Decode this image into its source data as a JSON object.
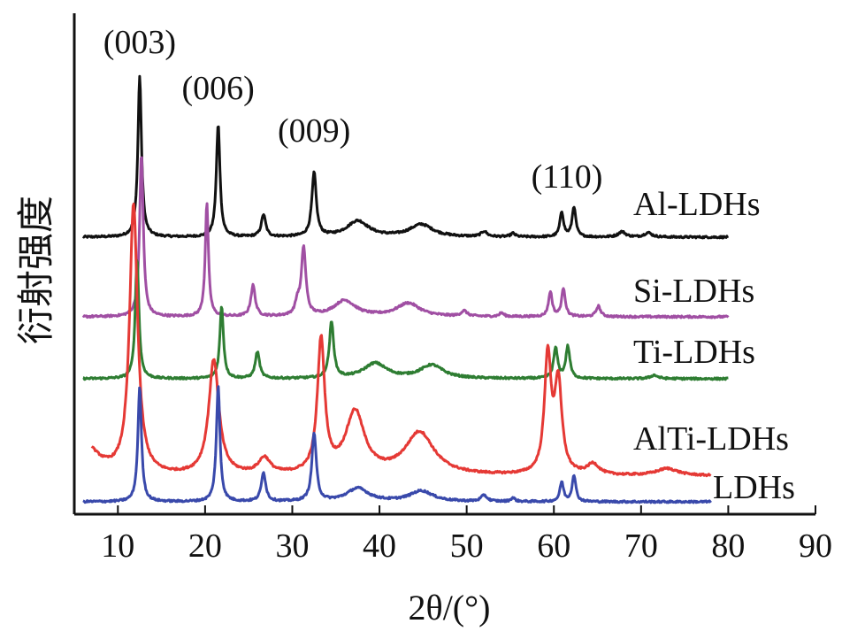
{
  "chart_data": {
    "type": "line",
    "xlabel": "2θ/(°)",
    "ylabel": "衍射强度",
    "xlim": [
      5,
      90
    ],
    "xticks": [
      10,
      20,
      30,
      40,
      50,
      60,
      70,
      80,
      90
    ],
    "y_ticks_shown": false,
    "grid": false,
    "legend": "inline labels at right end of each curve",
    "annotations": [
      {
        "text": "(003)",
        "x": 12.5
      },
      {
        "text": "(006)",
        "x": 21.5
      },
      {
        "text": "(009)",
        "x": 32.5
      },
      {
        "text": "(110)",
        "x": 61.5
      }
    ],
    "series": [
      {
        "name": "Al-LDHs",
        "color": "#111111",
        "baseline": 268,
        "x_range": [
          6,
          80
        ],
        "peaks": [
          {
            "x": 12.5,
            "height": 182,
            "width": 0.25
          },
          {
            "x": 21.5,
            "height": 127,
            "width": 0.25
          },
          {
            "x": 26.7,
            "height": 25,
            "width": 0.3
          },
          {
            "x": 32.5,
            "height": 72,
            "width": 0.3
          },
          {
            "x": 37.5,
            "height": 18,
            "width": 1.5
          },
          {
            "x": 44.8,
            "height": 14,
            "width": 1.6
          },
          {
            "x": 52.0,
            "height": 6,
            "width": 0.4
          },
          {
            "x": 55.3,
            "height": 4,
            "width": 0.3
          },
          {
            "x": 60.9,
            "height": 28,
            "width": 0.25
          },
          {
            "x": 62.3,
            "height": 34,
            "width": 0.25
          },
          {
            "x": 67.8,
            "height": 6,
            "width": 0.5
          },
          {
            "x": 70.8,
            "height": 5,
            "width": 0.5
          }
        ]
      },
      {
        "name": "Si-LDHs",
        "color": "#a04fa3",
        "baseline": 358,
        "x_range": [
          6,
          80
        ],
        "peaks": [
          {
            "x": 12.7,
            "height": 184,
            "width": 0.25
          },
          {
            "x": 20.2,
            "height": 128,
            "width": 0.22
          },
          {
            "x": 25.5,
            "height": 35,
            "width": 0.3
          },
          {
            "x": 31.3,
            "height": 77,
            "width": 0.3
          },
          {
            "x": 30.6,
            "height": 14,
            "width": 0.3
          },
          {
            "x": 36.0,
            "height": 18,
            "width": 1.5
          },
          {
            "x": 43.3,
            "height": 15,
            "width": 1.6
          },
          {
            "x": 49.7,
            "height": 6,
            "width": 0.4
          },
          {
            "x": 54.0,
            "height": 4,
            "width": 0.3
          },
          {
            "x": 59.6,
            "height": 28,
            "width": 0.25
          },
          {
            "x": 61.1,
            "height": 32,
            "width": 0.25
          },
          {
            "x": 65.1,
            "height": 12,
            "width": 0.3
          }
        ]
      },
      {
        "name": "Ti-LDHs",
        "color": "#2e7d32",
        "baseline": 428,
        "x_range": [
          6,
          80
        ],
        "peaks": [
          {
            "x": 12.2,
            "height": 136,
            "width": 0.25
          },
          {
            "x": 21.9,
            "height": 82,
            "width": 0.25
          },
          {
            "x": 26.0,
            "height": 30,
            "width": 0.3
          },
          {
            "x": 34.5,
            "height": 63,
            "width": 0.3
          },
          {
            "x": 39.5,
            "height": 17,
            "width": 1.6
          },
          {
            "x": 46.0,
            "height": 15,
            "width": 1.6
          },
          {
            "x": 60.2,
            "height": 34,
            "width": 0.28
          },
          {
            "x": 61.6,
            "height": 36,
            "width": 0.28
          },
          {
            "x": 71.5,
            "height": 4,
            "width": 0.5
          }
        ]
      },
      {
        "name": "AlTi-LDHs",
        "color": "#e53935",
        "baseline": 538,
        "x_range": [
          7,
          78
        ],
        "peaks": [
          {
            "x": 11.8,
            "height": 305,
            "width": 0.55
          },
          {
            "x": 21.0,
            "height": 130,
            "width": 0.7
          },
          {
            "x": 26.8,
            "height": 18,
            "width": 0.8
          },
          {
            "x": 33.3,
            "height": 150,
            "width": 0.5
          },
          {
            "x": 37.2,
            "height": 70,
            "width": 1.3
          },
          {
            "x": 44.6,
            "height": 48,
            "width": 2.0
          },
          {
            "x": 59.3,
            "height": 132,
            "width": 0.45
          },
          {
            "x": 60.5,
            "height": 102,
            "width": 0.5
          },
          {
            "x": 64.5,
            "height": 12,
            "width": 0.8
          },
          {
            "x": 73.0,
            "height": 8,
            "width": 1.5
          }
        ]
      },
      {
        "name": "LDHs",
        "color": "#3949ab",
        "baseline": 567,
        "x_range": [
          6,
          78
        ],
        "peaks": [
          {
            "x": 12.5,
            "height": 130,
            "width": 0.25
          },
          {
            "x": 21.5,
            "height": 130,
            "width": 0.25
          },
          {
            "x": 26.7,
            "height": 33,
            "width": 0.3
          },
          {
            "x": 32.5,
            "height": 77,
            "width": 0.3
          },
          {
            "x": 37.5,
            "height": 15,
            "width": 1.5
          },
          {
            "x": 44.8,
            "height": 12,
            "width": 1.6
          },
          {
            "x": 52.0,
            "height": 7,
            "width": 0.4
          },
          {
            "x": 55.3,
            "height": 4,
            "width": 0.3
          },
          {
            "x": 60.9,
            "height": 22,
            "width": 0.25
          },
          {
            "x": 62.3,
            "height": 30,
            "width": 0.25
          }
        ]
      }
    ]
  }
}
